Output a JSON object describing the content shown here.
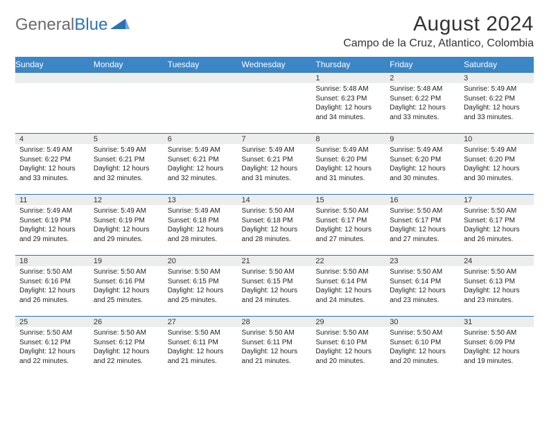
{
  "logo": {
    "word1": "General",
    "word2": "Blue"
  },
  "title": "August 2024",
  "location": "Campo de la Cruz, Atlantico, Colombia",
  "colors": {
    "header_bg": "#3b86c7",
    "header_text": "#ffffff",
    "rule": "#2a72b5",
    "daynum_bg": "#eceded",
    "logo_gray": "#6b6b6b",
    "logo_blue": "#2a72b5",
    "body_text": "#222222",
    "page_bg": "#ffffff"
  },
  "day_labels": [
    "Sunday",
    "Monday",
    "Tuesday",
    "Wednesday",
    "Thursday",
    "Friday",
    "Saturday"
  ],
  "weeks": [
    [
      null,
      null,
      null,
      null,
      {
        "n": "1",
        "sr": "Sunrise: 5:48 AM",
        "ss": "Sunset: 6:23 PM",
        "d1": "Daylight: 12 hours",
        "d2": "and 34 minutes."
      },
      {
        "n": "2",
        "sr": "Sunrise: 5:48 AM",
        "ss": "Sunset: 6:22 PM",
        "d1": "Daylight: 12 hours",
        "d2": "and 33 minutes."
      },
      {
        "n": "3",
        "sr": "Sunrise: 5:49 AM",
        "ss": "Sunset: 6:22 PM",
        "d1": "Daylight: 12 hours",
        "d2": "and 33 minutes."
      }
    ],
    [
      {
        "n": "4",
        "sr": "Sunrise: 5:49 AM",
        "ss": "Sunset: 6:22 PM",
        "d1": "Daylight: 12 hours",
        "d2": "and 33 minutes."
      },
      {
        "n": "5",
        "sr": "Sunrise: 5:49 AM",
        "ss": "Sunset: 6:21 PM",
        "d1": "Daylight: 12 hours",
        "d2": "and 32 minutes."
      },
      {
        "n": "6",
        "sr": "Sunrise: 5:49 AM",
        "ss": "Sunset: 6:21 PM",
        "d1": "Daylight: 12 hours",
        "d2": "and 32 minutes."
      },
      {
        "n": "7",
        "sr": "Sunrise: 5:49 AM",
        "ss": "Sunset: 6:21 PM",
        "d1": "Daylight: 12 hours",
        "d2": "and 31 minutes."
      },
      {
        "n": "8",
        "sr": "Sunrise: 5:49 AM",
        "ss": "Sunset: 6:20 PM",
        "d1": "Daylight: 12 hours",
        "d2": "and 31 minutes."
      },
      {
        "n": "9",
        "sr": "Sunrise: 5:49 AM",
        "ss": "Sunset: 6:20 PM",
        "d1": "Daylight: 12 hours",
        "d2": "and 30 minutes."
      },
      {
        "n": "10",
        "sr": "Sunrise: 5:49 AM",
        "ss": "Sunset: 6:20 PM",
        "d1": "Daylight: 12 hours",
        "d2": "and 30 minutes."
      }
    ],
    [
      {
        "n": "11",
        "sr": "Sunrise: 5:49 AM",
        "ss": "Sunset: 6:19 PM",
        "d1": "Daylight: 12 hours",
        "d2": "and 29 minutes."
      },
      {
        "n": "12",
        "sr": "Sunrise: 5:49 AM",
        "ss": "Sunset: 6:19 PM",
        "d1": "Daylight: 12 hours",
        "d2": "and 29 minutes."
      },
      {
        "n": "13",
        "sr": "Sunrise: 5:49 AM",
        "ss": "Sunset: 6:18 PM",
        "d1": "Daylight: 12 hours",
        "d2": "and 28 minutes."
      },
      {
        "n": "14",
        "sr": "Sunrise: 5:50 AM",
        "ss": "Sunset: 6:18 PM",
        "d1": "Daylight: 12 hours",
        "d2": "and 28 minutes."
      },
      {
        "n": "15",
        "sr": "Sunrise: 5:50 AM",
        "ss": "Sunset: 6:17 PM",
        "d1": "Daylight: 12 hours",
        "d2": "and 27 minutes."
      },
      {
        "n": "16",
        "sr": "Sunrise: 5:50 AM",
        "ss": "Sunset: 6:17 PM",
        "d1": "Daylight: 12 hours",
        "d2": "and 27 minutes."
      },
      {
        "n": "17",
        "sr": "Sunrise: 5:50 AM",
        "ss": "Sunset: 6:17 PM",
        "d1": "Daylight: 12 hours",
        "d2": "and 26 minutes."
      }
    ],
    [
      {
        "n": "18",
        "sr": "Sunrise: 5:50 AM",
        "ss": "Sunset: 6:16 PM",
        "d1": "Daylight: 12 hours",
        "d2": "and 26 minutes."
      },
      {
        "n": "19",
        "sr": "Sunrise: 5:50 AM",
        "ss": "Sunset: 6:16 PM",
        "d1": "Daylight: 12 hours",
        "d2": "and 25 minutes."
      },
      {
        "n": "20",
        "sr": "Sunrise: 5:50 AM",
        "ss": "Sunset: 6:15 PM",
        "d1": "Daylight: 12 hours",
        "d2": "and 25 minutes."
      },
      {
        "n": "21",
        "sr": "Sunrise: 5:50 AM",
        "ss": "Sunset: 6:15 PM",
        "d1": "Daylight: 12 hours",
        "d2": "and 24 minutes."
      },
      {
        "n": "22",
        "sr": "Sunrise: 5:50 AM",
        "ss": "Sunset: 6:14 PM",
        "d1": "Daylight: 12 hours",
        "d2": "and 24 minutes."
      },
      {
        "n": "23",
        "sr": "Sunrise: 5:50 AM",
        "ss": "Sunset: 6:14 PM",
        "d1": "Daylight: 12 hours",
        "d2": "and 23 minutes."
      },
      {
        "n": "24",
        "sr": "Sunrise: 5:50 AM",
        "ss": "Sunset: 6:13 PM",
        "d1": "Daylight: 12 hours",
        "d2": "and 23 minutes."
      }
    ],
    [
      {
        "n": "25",
        "sr": "Sunrise: 5:50 AM",
        "ss": "Sunset: 6:12 PM",
        "d1": "Daylight: 12 hours",
        "d2": "and 22 minutes."
      },
      {
        "n": "26",
        "sr": "Sunrise: 5:50 AM",
        "ss": "Sunset: 6:12 PM",
        "d1": "Daylight: 12 hours",
        "d2": "and 22 minutes."
      },
      {
        "n": "27",
        "sr": "Sunrise: 5:50 AM",
        "ss": "Sunset: 6:11 PM",
        "d1": "Daylight: 12 hours",
        "d2": "and 21 minutes."
      },
      {
        "n": "28",
        "sr": "Sunrise: 5:50 AM",
        "ss": "Sunset: 6:11 PM",
        "d1": "Daylight: 12 hours",
        "d2": "and 21 minutes."
      },
      {
        "n": "29",
        "sr": "Sunrise: 5:50 AM",
        "ss": "Sunset: 6:10 PM",
        "d1": "Daylight: 12 hours",
        "d2": "and 20 minutes."
      },
      {
        "n": "30",
        "sr": "Sunrise: 5:50 AM",
        "ss": "Sunset: 6:10 PM",
        "d1": "Daylight: 12 hours",
        "d2": "and 20 minutes."
      },
      {
        "n": "31",
        "sr": "Sunrise: 5:50 AM",
        "ss": "Sunset: 6:09 PM",
        "d1": "Daylight: 12 hours",
        "d2": "and 19 minutes."
      }
    ]
  ]
}
